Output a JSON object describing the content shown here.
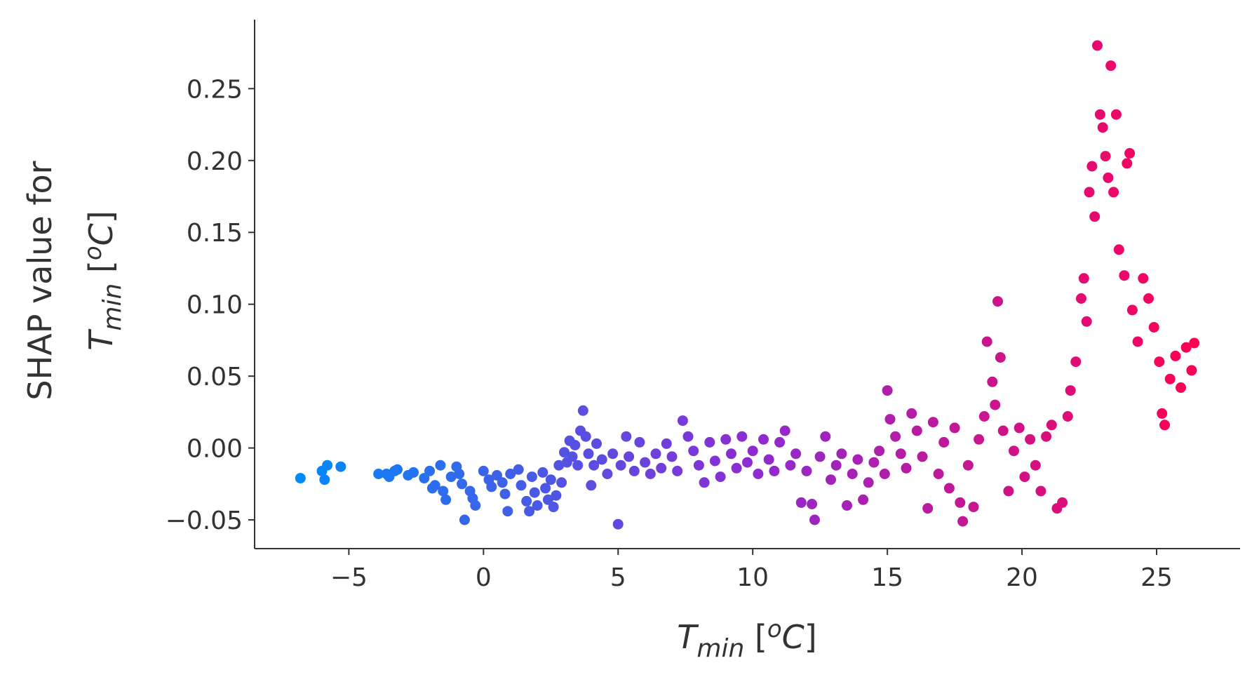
{
  "chart_data": {
    "type": "scatter",
    "title": "",
    "xlabel": {
      "symbol": "T",
      "subscript": "min",
      "unit_open": " [",
      "unit_sup": "o",
      "unit_main": "C",
      "unit_close": "]"
    },
    "ylabel": {
      "line1": "SHAP value for",
      "symbol": "T",
      "subscript": "min",
      "unit_open": " [",
      "unit_sup": "o",
      "unit_main": "C",
      "unit_close": "]"
    },
    "xlim": [
      -8.5,
      28.1
    ],
    "ylim": [
      -0.07,
      0.298
    ],
    "xticks": [
      -5,
      0,
      5,
      10,
      15,
      20,
      25
    ],
    "xtick_labels": [
      "−5",
      "0",
      "5",
      "10",
      "15",
      "20",
      "25"
    ],
    "yticks": [
      -0.05,
      0.0,
      0.05,
      0.1,
      0.15,
      0.2,
      0.25
    ],
    "ytick_labels": [
      "−0.05",
      "0.00",
      "0.05",
      "0.10",
      "0.15",
      "0.20",
      "0.25"
    ],
    "grid": false,
    "color_scale": {
      "low": "#008bfb",
      "mid": "#8c2cd2",
      "high": "#ff0052",
      "by": "x"
    },
    "points": [
      [
        -6.8,
        -0.021
      ],
      [
        -6.0,
        -0.016
      ],
      [
        -5.9,
        -0.022
      ],
      [
        -5.8,
        -0.012
      ],
      [
        -5.3,
        -0.013
      ],
      [
        -3.9,
        -0.018
      ],
      [
        -3.6,
        -0.018
      ],
      [
        -3.5,
        -0.02
      ],
      [
        -3.3,
        -0.016
      ],
      [
        -3.2,
        -0.015
      ],
      [
        -2.8,
        -0.019
      ],
      [
        -2.6,
        -0.017
      ],
      [
        -2.2,
        -0.021
      ],
      [
        -2.0,
        -0.016
      ],
      [
        -1.9,
        -0.028
      ],
      [
        -1.8,
        -0.026
      ],
      [
        -1.6,
        -0.012
      ],
      [
        -1.5,
        -0.03
      ],
      [
        -1.4,
        -0.036
      ],
      [
        -1.2,
        -0.02
      ],
      [
        -1.0,
        -0.013
      ],
      [
        -0.9,
        -0.018
      ],
      [
        -0.8,
        -0.025
      ],
      [
        -0.7,
        -0.05
      ],
      [
        -0.5,
        -0.03
      ],
      [
        -0.4,
        -0.035
      ],
      [
        -0.3,
        -0.04
      ],
      [
        0.0,
        -0.016
      ],
      [
        0.2,
        -0.022
      ],
      [
        0.3,
        -0.027
      ],
      [
        0.5,
        -0.019
      ],
      [
        0.7,
        -0.024
      ],
      [
        0.8,
        -0.032
      ],
      [
        0.9,
        -0.044
      ],
      [
        1.0,
        -0.018
      ],
      [
        1.3,
        -0.015
      ],
      [
        1.4,
        -0.026
      ],
      [
        1.6,
        -0.037
      ],
      [
        1.7,
        -0.044
      ],
      [
        1.8,
        -0.02
      ],
      [
        1.9,
        -0.031
      ],
      [
        2.0,
        -0.04
      ],
      [
        2.2,
        -0.017
      ],
      [
        2.3,
        -0.028
      ],
      [
        2.4,
        -0.036
      ],
      [
        2.5,
        -0.022
      ],
      [
        2.6,
        -0.041
      ],
      [
        2.7,
        -0.033
      ],
      [
        2.8,
        -0.012
      ],
      [
        2.9,
        -0.024
      ],
      [
        3.0,
        -0.003
      ],
      [
        3.1,
        -0.01
      ],
      [
        3.2,
        0.005
      ],
      [
        3.3,
        -0.006
      ],
      [
        3.4,
        0.002
      ],
      [
        3.5,
        -0.012
      ],
      [
        3.6,
        0.012
      ],
      [
        3.7,
        0.026
      ],
      [
        3.8,
        0.008
      ],
      [
        3.9,
        -0.004
      ],
      [
        4.0,
        -0.026
      ],
      [
        4.1,
        -0.012
      ],
      [
        4.2,
        0.003
      ],
      [
        4.4,
        -0.008
      ],
      [
        4.6,
        -0.018
      ],
      [
        4.8,
        -0.004
      ],
      [
        5.0,
        -0.053
      ],
      [
        5.1,
        -0.012
      ],
      [
        5.3,
        0.008
      ],
      [
        5.4,
        -0.006
      ],
      [
        5.6,
        -0.016
      ],
      [
        5.8,
        0.004
      ],
      [
        6.0,
        -0.01
      ],
      [
        6.2,
        -0.018
      ],
      [
        6.4,
        -0.004
      ],
      [
        6.6,
        -0.014
      ],
      [
        6.8,
        0.003
      ],
      [
        7.0,
        -0.006
      ],
      [
        7.2,
        -0.016
      ],
      [
        7.4,
        0.019
      ],
      [
        7.6,
        0.008
      ],
      [
        7.8,
        -0.002
      ],
      [
        8.0,
        -0.012
      ],
      [
        8.2,
        -0.024
      ],
      [
        8.4,
        0.004
      ],
      [
        8.6,
        -0.009
      ],
      [
        8.8,
        -0.02
      ],
      [
        9.0,
        0.006
      ],
      [
        9.2,
        -0.004
      ],
      [
        9.4,
        -0.014
      ],
      [
        9.6,
        0.008
      ],
      [
        9.8,
        -0.01
      ],
      [
        10.0,
        -0.002
      ],
      [
        10.2,
        -0.018
      ],
      [
        10.4,
        0.006
      ],
      [
        10.6,
        -0.008
      ],
      [
        10.8,
        -0.016
      ],
      [
        11.0,
        0.004
      ],
      [
        11.2,
        0.012
      ],
      [
        11.4,
        -0.012
      ],
      [
        11.6,
        -0.004
      ],
      [
        11.8,
        -0.038
      ],
      [
        12.0,
        -0.016
      ],
      [
        12.2,
        -0.039
      ],
      [
        12.3,
        -0.05
      ],
      [
        12.5,
        -0.006
      ],
      [
        12.7,
        0.008
      ],
      [
        12.9,
        -0.022
      ],
      [
        13.1,
        -0.012
      ],
      [
        13.3,
        -0.004
      ],
      [
        13.5,
        -0.04
      ],
      [
        13.7,
        -0.018
      ],
      [
        13.9,
        -0.008
      ],
      [
        14.1,
        -0.036
      ],
      [
        14.3,
        -0.024
      ],
      [
        14.5,
        -0.01
      ],
      [
        14.7,
        -0.002
      ],
      [
        14.9,
        -0.018
      ],
      [
        15.0,
        0.04
      ],
      [
        15.1,
        0.02
      ],
      [
        15.3,
        0.008
      ],
      [
        15.5,
        -0.004
      ],
      [
        15.7,
        -0.014
      ],
      [
        15.9,
        0.024
      ],
      [
        16.1,
        0.012
      ],
      [
        16.3,
        -0.006
      ],
      [
        16.5,
        -0.042
      ],
      [
        16.7,
        0.018
      ],
      [
        16.9,
        -0.018
      ],
      [
        17.1,
        0.004
      ],
      [
        17.3,
        -0.028
      ],
      [
        17.5,
        0.014
      ],
      [
        17.7,
        -0.038
      ],
      [
        17.8,
        -0.051
      ],
      [
        18.0,
        -0.012
      ],
      [
        18.2,
        -0.041
      ],
      [
        18.4,
        0.006
      ],
      [
        18.6,
        0.022
      ],
      [
        18.7,
        0.074
      ],
      [
        18.9,
        0.046
      ],
      [
        19.0,
        0.03
      ],
      [
        19.1,
        0.102
      ],
      [
        19.2,
        0.063
      ],
      [
        19.3,
        0.012
      ],
      [
        19.5,
        -0.03
      ],
      [
        19.7,
        -0.002
      ],
      [
        19.9,
        0.014
      ],
      [
        20.1,
        -0.02
      ],
      [
        20.3,
        0.006
      ],
      [
        20.5,
        -0.012
      ],
      [
        20.7,
        -0.03
      ],
      [
        20.9,
        0.008
      ],
      [
        21.1,
        0.016
      ],
      [
        21.3,
        -0.042
      ],
      [
        21.5,
        -0.038
      ],
      [
        21.7,
        0.022
      ],
      [
        21.8,
        0.04
      ],
      [
        22.0,
        0.06
      ],
      [
        22.2,
        0.104
      ],
      [
        22.3,
        0.118
      ],
      [
        22.4,
        0.088
      ],
      [
        22.5,
        0.178
      ],
      [
        22.6,
        0.196
      ],
      [
        22.7,
        0.161
      ],
      [
        22.8,
        0.28
      ],
      [
        22.9,
        0.232
      ],
      [
        23.0,
        0.223
      ],
      [
        23.1,
        0.203
      ],
      [
        23.2,
        0.188
      ],
      [
        23.3,
        0.266
      ],
      [
        23.4,
        0.178
      ],
      [
        23.5,
        0.232
      ],
      [
        23.6,
        0.138
      ],
      [
        23.8,
        0.12
      ],
      [
        23.9,
        0.198
      ],
      [
        24.0,
        0.205
      ],
      [
        24.1,
        0.096
      ],
      [
        24.3,
        0.074
      ],
      [
        24.5,
        0.118
      ],
      [
        24.7,
        0.104
      ],
      [
        24.9,
        0.084
      ],
      [
        25.1,
        0.06
      ],
      [
        25.2,
        0.024
      ],
      [
        25.3,
        0.016
      ],
      [
        25.5,
        0.048
      ],
      [
        25.7,
        0.064
      ],
      [
        25.9,
        0.042
      ],
      [
        26.1,
        0.07
      ],
      [
        26.3,
        0.054
      ],
      [
        26.4,
        0.073
      ]
    ]
  }
}
